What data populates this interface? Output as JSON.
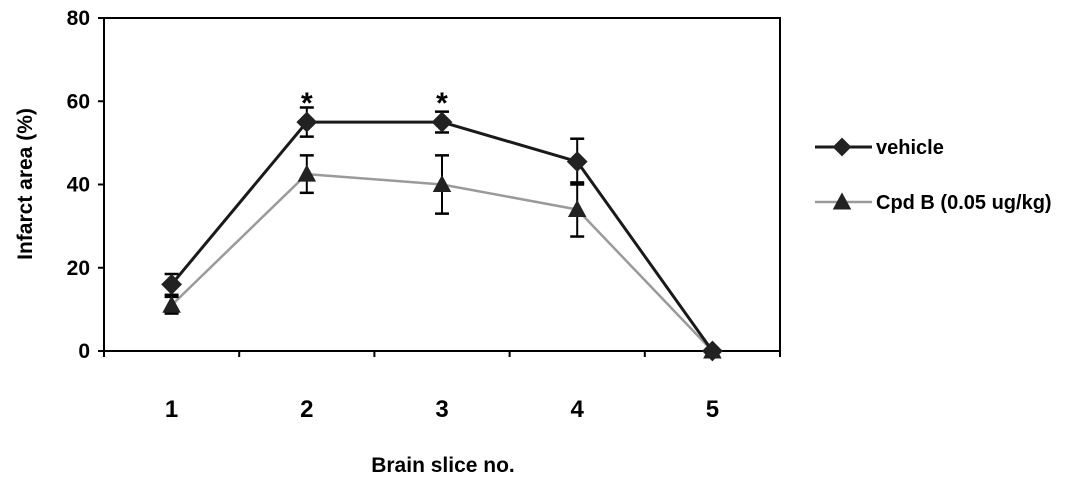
{
  "chart_data": {
    "type": "line",
    "xlabel": "Brain slice no.",
    "ylabel": "Infarct area (%)",
    "categories": [
      "1",
      "2",
      "3",
      "4",
      "5"
    ],
    "ylim": [
      0,
      80
    ],
    "yticks": [
      0,
      20,
      40,
      60,
      80
    ],
    "grid": false,
    "legend": "right",
    "series": [
      {
        "name": "vehicle",
        "values": [
          16,
          55,
          55,
          45.5,
          0
        ],
        "errors": [
          2.5,
          3.5,
          2.5,
          5.5,
          0
        ],
        "marker": "diamond",
        "color": "#1a1a1a"
      },
      {
        "name": "Cpd B (0.05 ug/kg)",
        "values": [
          11,
          42.5,
          40,
          34,
          0
        ],
        "errors": [
          2,
          4.5,
          7,
          6.5,
          0
        ],
        "marker": "triangle",
        "color": "#9a9a9a"
      }
    ],
    "annotations": [
      {
        "text": "*",
        "category": "2"
      },
      {
        "text": "*",
        "category": "3"
      }
    ]
  }
}
